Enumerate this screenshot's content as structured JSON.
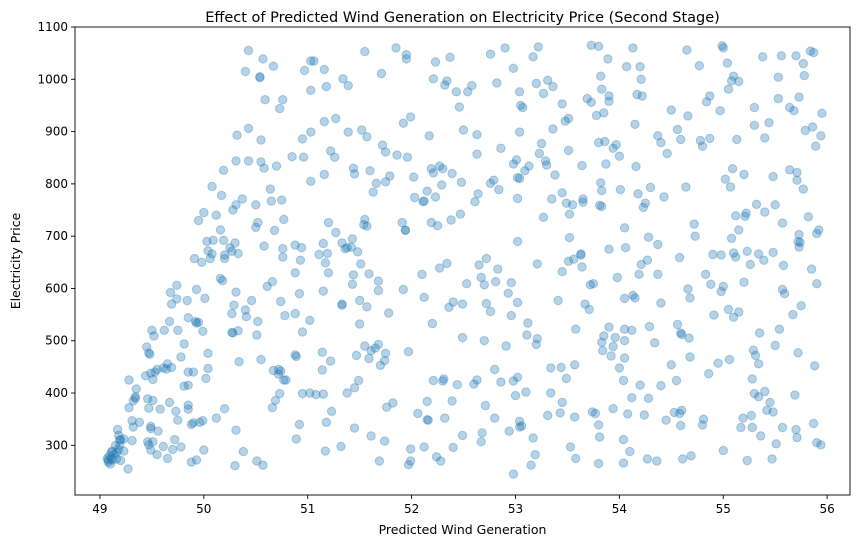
{
  "chart_data": {
    "type": "scatter",
    "title": "Effect of Predicted Wind Generation on Electricity Price (Second Stage)",
    "xlabel": "Predicted Wind Generation",
    "ylabel": "Electricity Price",
    "xlim": [
      48.76,
      56.22
    ],
    "ylim": [
      205,
      1100
    ],
    "x_ticks": [
      49,
      50,
      51,
      52,
      53,
      54,
      55,
      56
    ],
    "y_ticks": [
      300,
      400,
      500,
      600,
      700,
      800,
      900,
      1000,
      1100
    ],
    "grid": false,
    "color": "#1f77b4",
    "alpha": 0.35,
    "point_count": 700,
    "point_pattern": {
      "x_range": [
        49.05,
        55.95
      ],
      "y_min": 245,
      "y_max": 1065,
      "lower_bound_points": [
        [
          49.05,
          275
        ],
        [
          50.5,
          265
        ],
        [
          52.0,
          258
        ],
        [
          53.0,
          245
        ],
        [
          55.0,
          290
        ]
      ],
      "upper_bound_points": [
        [
          49.5,
          520
        ],
        [
          50.0,
          700
        ],
        [
          50.5,
          1050
        ],
        [
          55.9,
          935
        ]
      ]
    },
    "sample_points": [
      [
        49.07,
        275
      ],
      [
        49.27,
        255
      ],
      [
        49.28,
        425
      ],
      [
        49.32,
        385
      ],
      [
        49.45,
        488
      ],
      [
        49.5,
        520
      ],
      [
        49.55,
        445
      ],
      [
        49.69,
        570
      ],
      [
        49.85,
        415
      ],
      [
        49.98,
        650
      ],
      [
        49.95,
        730
      ],
      [
        50.03,
        690
      ],
      [
        50.2,
        370
      ],
      [
        50.43,
        1055
      ],
      [
        50.4,
        1015
      ],
      [
        50.67,
        1025
      ],
      [
        50.51,
        270
      ],
      [
        51.97,
        263
      ],
      [
        52.98,
        245
      ],
      [
        53.22,
        1062
      ],
      [
        54.65,
        1056
      ],
      [
        55.7,
        1045
      ],
      [
        55.73,
        966
      ],
      [
        55.95,
        935
      ],
      [
        55.5,
        760
      ],
      [
        55.57,
        725
      ],
      [
        55.15,
        555
      ],
      [
        55.2,
        612
      ],
      [
        54.95,
        457
      ],
      [
        55.0,
        290
      ],
      [
        54.59,
        338
      ],
      [
        53.8,
        265
      ],
      [
        53.58,
        275
      ],
      [
        53.15,
        262
      ]
    ]
  }
}
